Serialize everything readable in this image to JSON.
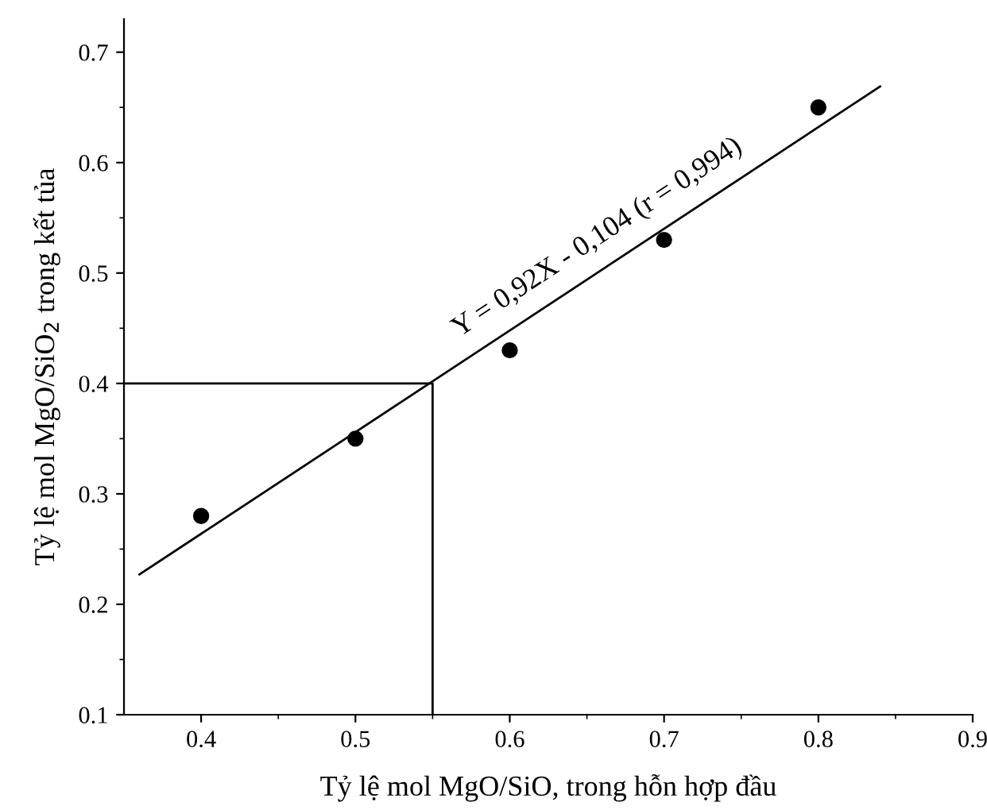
{
  "chart_data": {
    "type": "scatter",
    "xlabel": "Tỷ lệ mol MgO/SiO, trong hỗn hợp đầu",
    "ylabel": "Tỷ lệ mol MgO/SiO$_{2}$ trong kết tủa",
    "x": [
      0.4,
      0.5,
      0.6,
      0.7,
      0.8
    ],
    "series": [
      {
        "color": "#000000",
        "marker": "circle",
        "values": [
          0.28,
          0.35,
          0.43,
          0.53,
          0.65
        ]
      },
      {
        "type": "line",
        "color": "#000000",
        "marker": "none",
        "x": [
          0.36,
          0.84
        ],
        "values": [
          0.227,
          0.669
        ]
      },
      {
        "type": "line",
        "color": "#000000",
        "marker": "none",
        "x": [
          0.35,
          0.55,
          0.55
        ],
        "values": [
          0.4,
          0.4,
          0.1
        ]
      }
    ],
    "annotations": [
      "Y = 0,92X - 0,104 (r = 0,994)"
    ],
    "xlim": [
      0.35,
      0.9
    ],
    "ylim": [
      0.1,
      0.73
    ],
    "xticks": [
      0.4,
      0.5,
      0.6,
      0.7,
      0.8,
      0.9
    ],
    "yticks": [
      0.1,
      0.2,
      0.3,
      0.4,
      0.5,
      0.6,
      0.7
    ],
    "grid": false,
    "legend": false
  }
}
